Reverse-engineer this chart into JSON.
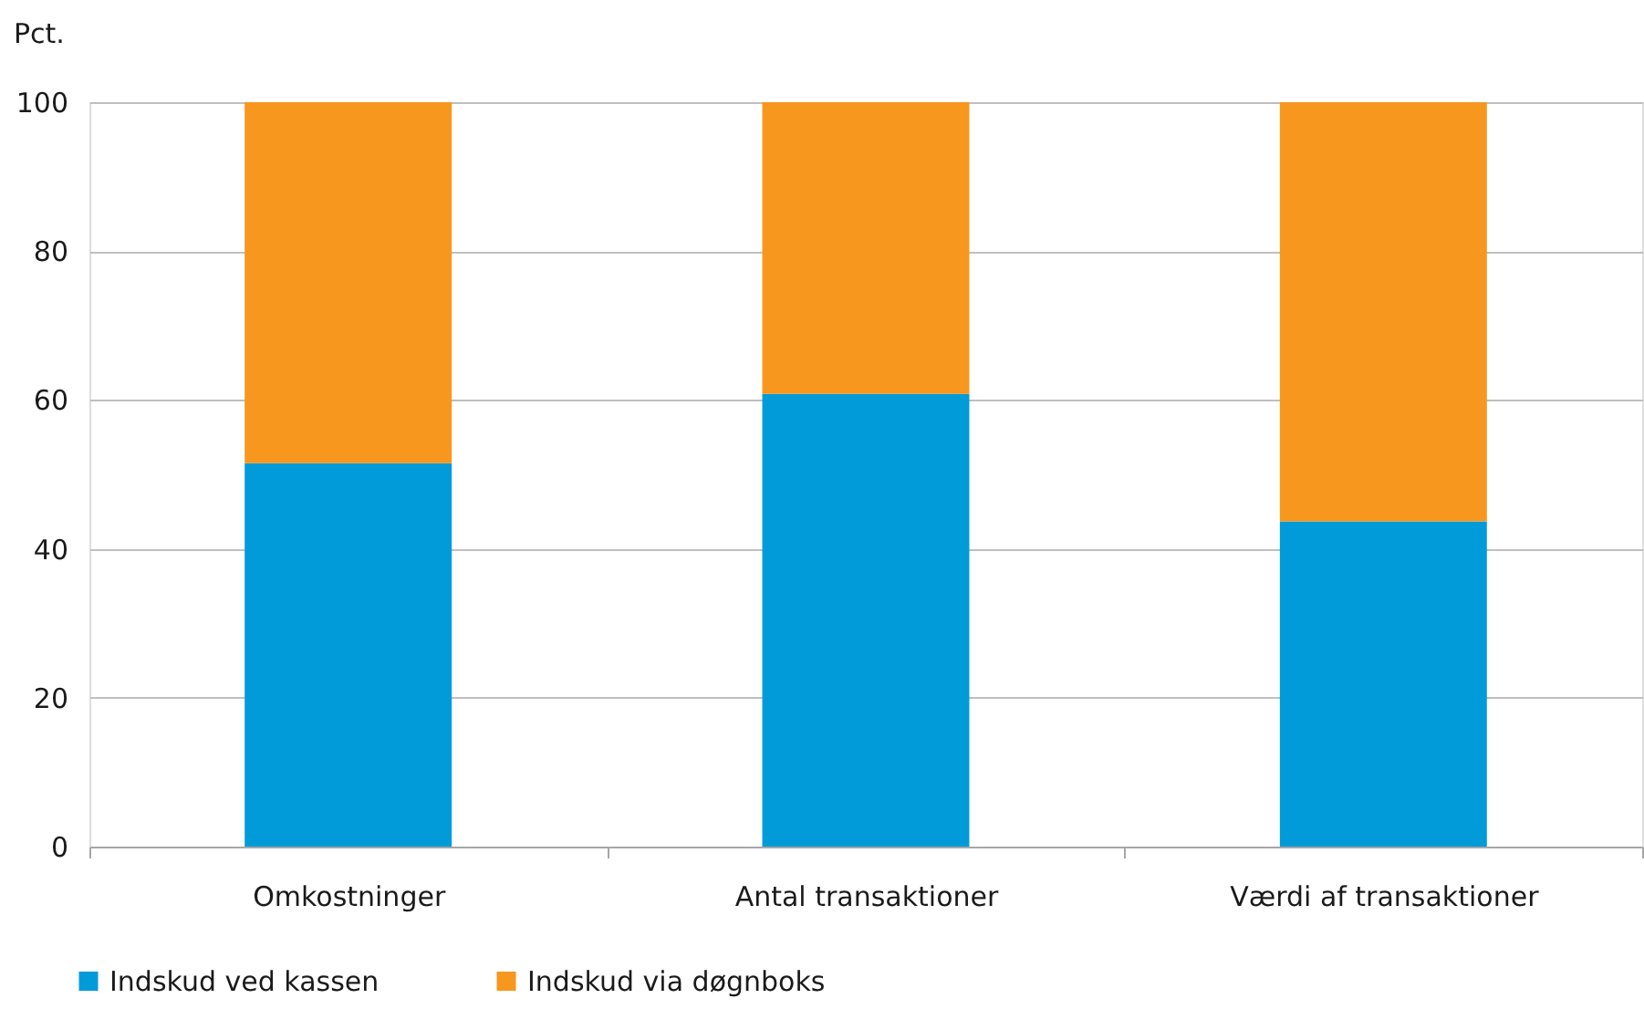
{
  "chart_data": {
    "type": "bar",
    "stacked": true,
    "ylabel": "Pct.",
    "categories": [
      "Omkostninger",
      "Antal transaktioner",
      "Værdi af transaktioner"
    ],
    "series": [
      {
        "name": "Indskud ved kassen",
        "color": "#009bd8",
        "values": [
          51.5,
          60.8,
          43.7
        ]
      },
      {
        "name": "Indskud via døgnboks",
        "color": "#f7971e",
        "values": [
          48.5,
          39.2,
          56.3
        ]
      }
    ],
    "ylim": [
      0,
      100
    ],
    "yticks": [
      0,
      20,
      40,
      60,
      80,
      100
    ],
    "grid": "y",
    "legend": "bottom left"
  }
}
